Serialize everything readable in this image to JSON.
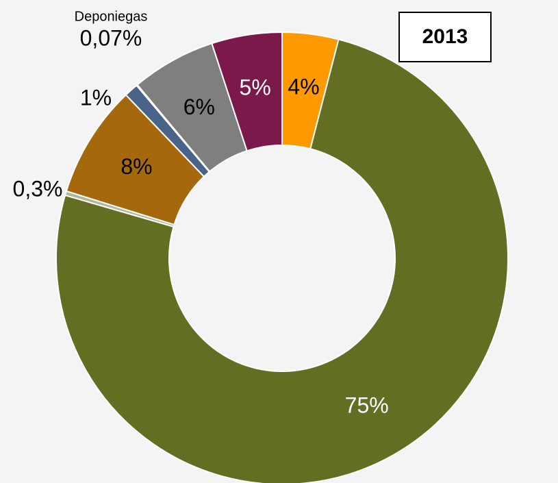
{
  "chart_data": {
    "type": "donut",
    "title": "2013",
    "categories": [
      null,
      null,
      null,
      null,
      null,
      "Deponiegas",
      null,
      null
    ],
    "values": [
      4,
      75,
      0.3,
      8,
      1,
      0.07,
      6,
      5
    ],
    "value_labels": [
      "4%",
      "75%",
      "0,3%",
      "8%",
      "1%",
      "0,07%",
      "6%",
      "5%"
    ],
    "colors": [
      "#ff9900",
      "#636e23",
      "#b3b597",
      "#a5680c",
      "#4a6389",
      "#d0d0d0",
      "#7f7f7f",
      "#7b1a4a"
    ],
    "label_colors": [
      "#000000",
      "#ffffff",
      "#000000",
      "#000000",
      "#000000",
      "#000000",
      "#000000",
      "#ffffff"
    ]
  }
}
